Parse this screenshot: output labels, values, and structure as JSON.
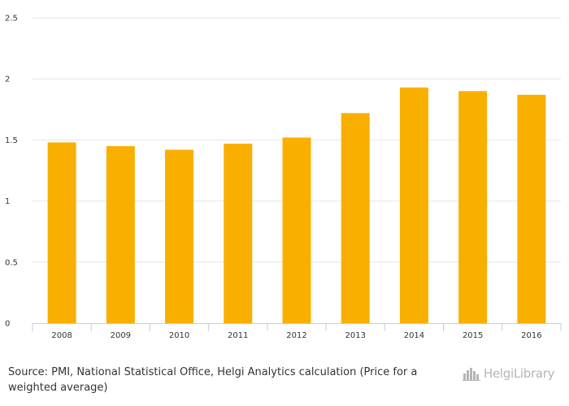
{
  "chart_data": {
    "type": "bar",
    "categories": [
      "2008",
      "2009",
      "2010",
      "2011",
      "2012",
      "2013",
      "2014",
      "2015",
      "2016"
    ],
    "values": [
      1.48,
      1.45,
      1.42,
      1.47,
      1.52,
      1.72,
      1.93,
      1.9,
      1.87
    ],
    "ylim": [
      0,
      2.5
    ],
    "yticks": [
      "0",
      "0.5",
      "1",
      "1.5",
      "2",
      "2.5"
    ],
    "title": "",
    "xlabel": "",
    "ylabel": "",
    "grid": true,
    "bar_color": "#F9AF00",
    "grid_color": "#E6E6E6"
  },
  "footer": {
    "source": "Source: PMI, National Statistical Office, Helgi Analytics calculation (Price for a weighted average)"
  },
  "logo": {
    "text": "HelgiLibrary",
    "icon": "city-skyline-icon"
  }
}
